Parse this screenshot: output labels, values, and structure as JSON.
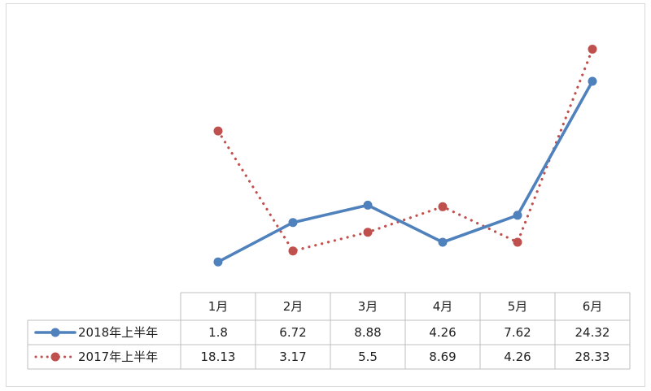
{
  "chart_data": {
    "type": "line",
    "categories": [
      "1月",
      "2月",
      "3月",
      "4月",
      "5月",
      "6月"
    ],
    "series": [
      {
        "name": "2018年上半年",
        "values": [
          1.8,
          6.72,
          8.88,
          4.26,
          7.62,
          24.32
        ],
        "color": "#4f81bd",
        "style": "solid"
      },
      {
        "name": "2017年上半年",
        "values": [
          18.13,
          3.17,
          5.5,
          8.69,
          4.26,
          28.33
        ],
        "color": "#c0504d",
        "style": "dotted"
      }
    ],
    "title": "",
    "xlabel": "",
    "ylabel": "",
    "ylim": [
      0,
      30
    ],
    "grid": false,
    "legend": "data-table-left"
  }
}
